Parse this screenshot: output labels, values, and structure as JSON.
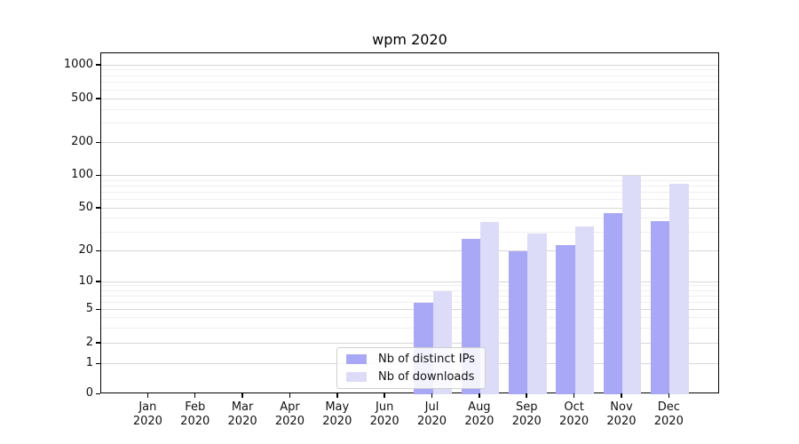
{
  "chart_data": {
    "type": "bar",
    "title": "wpm 2020",
    "categories": [
      "Jan",
      "Feb",
      "Mar",
      "Apr",
      "May",
      "Jun",
      "Jul",
      "Aug",
      "Sep",
      "Oct",
      "Nov",
      "Dec"
    ],
    "year_label": "2020",
    "series": [
      {
        "name": "Nb of distinct IPs",
        "color": "#a8a8f7",
        "values": [
          0,
          0,
          0,
          0,
          0,
          0,
          6,
          26,
          20,
          23,
          45,
          38
        ]
      },
      {
        "name": "Nb of downloads",
        "color": "#dcdcf8",
        "values": [
          0,
          0,
          0,
          0,
          0,
          0,
          8,
          37,
          29,
          34,
          100,
          85
        ]
      }
    ],
    "yscale": "symlog",
    "yticks": [
      0,
      1,
      2,
      5,
      10,
      20,
      50,
      100,
      200,
      500,
      1000
    ],
    "yminorticks": [
      3,
      4,
      6,
      7,
      8,
      9,
      30,
      40,
      60,
      70,
      80,
      90,
      300,
      400,
      600,
      700,
      800,
      900
    ],
    "grid": true,
    "legend_position": "lower-center",
    "xlabel": "",
    "ylabel": ""
  }
}
